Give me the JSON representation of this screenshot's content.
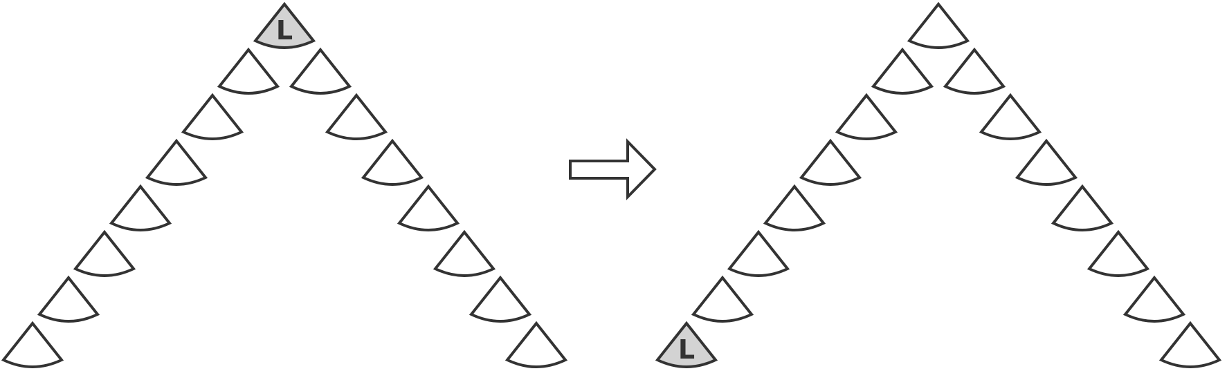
{
  "diagram": {
    "stroke_color": "#333333",
    "fill_default": "#ffffff",
    "fill_highlight": "#d3d3d3",
    "node_shape": "triangle-with-arc-base",
    "arrow_direction": "right",
    "before": {
      "left_chain_length": 8,
      "right_chain_length": 8,
      "leader_position": "apex",
      "leader_label": "L"
    },
    "after": {
      "left_chain_length": 8,
      "right_chain_length": 8,
      "leader_position": "bottom-left",
      "leader_label": "L"
    }
  }
}
